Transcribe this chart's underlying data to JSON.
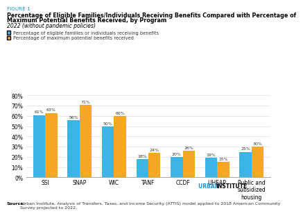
{
  "figure_label": "FIGURE 1",
  "title_line1": "Percentage of Eligible Families/Individuals Receiving Benefits Compared with Percentage of",
  "title_line2": "Maximum Potential Benefits Received, by Program",
  "subtitle": "2022 (without pandemic policies)",
  "legend1": "Percentage of eligible families or individuals receiving benefits",
  "legend2": "Percentage of maximum potential benefits received",
  "categories": [
    "SSI",
    "SNAP",
    "WIC",
    "TANF",
    "CCDF",
    "LIHEAP",
    "Public and\nsubsidized\nhousing"
  ],
  "blue_values": [
    61,
    56,
    50,
    18,
    20,
    19,
    25
  ],
  "gold_values": [
    63,
    71,
    60,
    24,
    26,
    15,
    30
  ],
  "blue_color": "#3CB4E5",
  "gold_color": "#F5A623",
  "ylabel_max": 80,
  "yticks": [
    0,
    10,
    20,
    30,
    40,
    50,
    60,
    70,
    80
  ],
  "source_bold": "Source:",
  "source_text": " Urban Institute, Analysis of Transfers, Taxes, and Income Security (ATTIS) model applied to 2018 American Community\nSurvey projected to 2022.",
  "urban_text_urban": "URBAN ",
  "urban_text_institute": "INSTITUTE",
  "urban_color": "#1696D2",
  "institute_color": "#000000",
  "figure_label_color": "#1696D2",
  "background_color": "#FFFFFF"
}
